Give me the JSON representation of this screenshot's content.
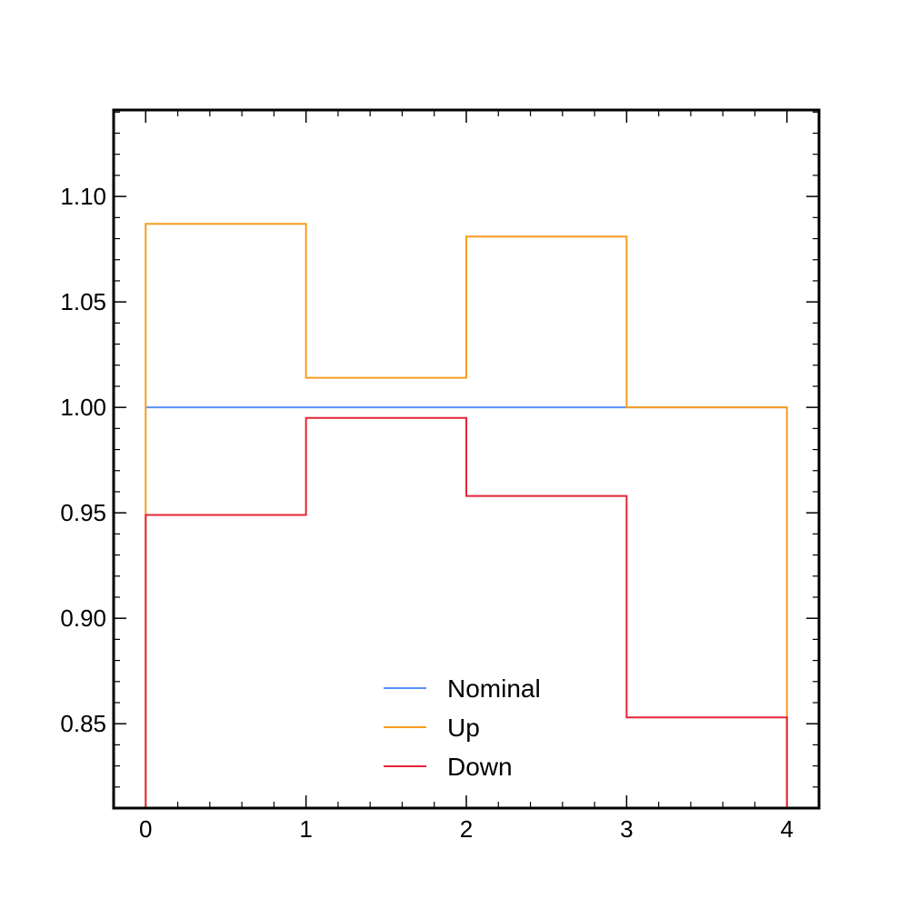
{
  "chart_data": {
    "type": "line",
    "style": "step-histogram",
    "bin_edges": [
      0,
      1,
      2,
      3,
      4
    ],
    "series": [
      {
        "name": "Nominal",
        "color": "#5790fc",
        "values": [
          1.0,
          1.0,
          1.0,
          1.0
        ]
      },
      {
        "name": "Up",
        "color": "#f89c20",
        "values": [
          1.087,
          1.014,
          1.081,
          1.0
        ]
      },
      {
        "name": "Down",
        "color": "#e42536",
        "values": [
          0.949,
          0.995,
          0.958,
          0.853
        ]
      }
    ],
    "title": "",
    "xlabel": "",
    "ylabel": "",
    "xlim": [
      -0.2,
      4.2
    ],
    "ylim": [
      0.81,
      1.141
    ],
    "x_ticks": [
      "0",
      "1",
      "2",
      "3",
      "4"
    ],
    "y_ticks": [
      "0.85",
      "0.90",
      "0.95",
      "1.00",
      "1.05",
      "1.10"
    ],
    "grid": false,
    "legend_position": "lower-center"
  }
}
